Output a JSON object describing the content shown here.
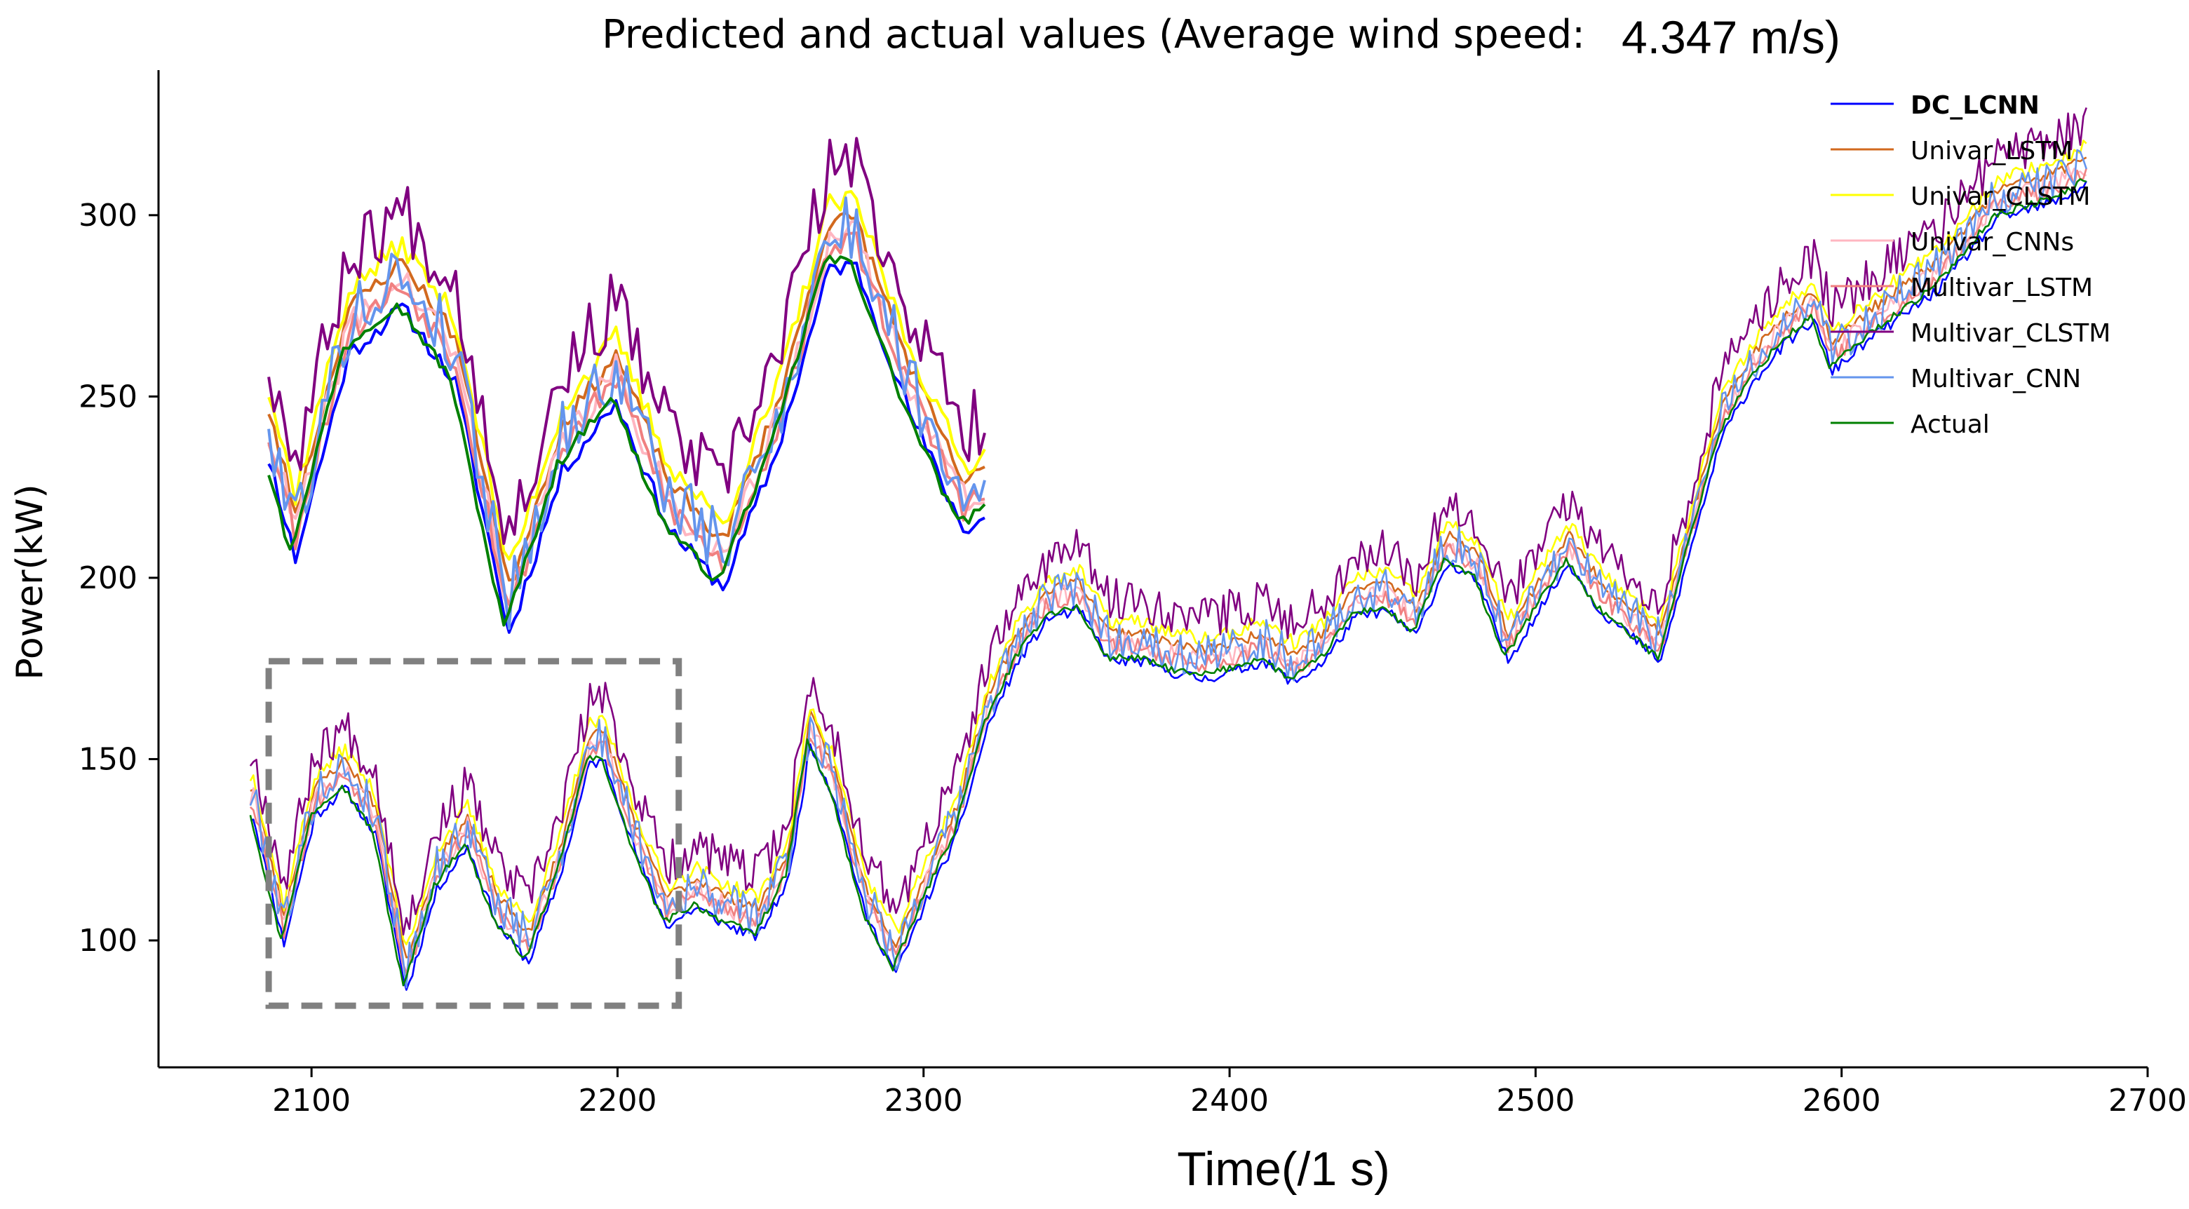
{
  "chart_data": {
    "type": "line",
    "title": "Predicted and actual values (Average wind speed:",
    "title_value": "4.347 m/s)",
    "xlabel": "Time(/1 s)",
    "ylabel": "Power(kW)",
    "xlim": [
      2050,
      2700
    ],
    "ylim": [
      65,
      340
    ],
    "xticks": [
      2100,
      2200,
      2300,
      2400,
      2500,
      2600,
      2700
    ],
    "yticks": [
      100,
      150,
      200,
      250,
      300
    ],
    "grid": false,
    "legend_position": "top-right",
    "zoom_box": {
      "x": [
        2086,
        2220
      ],
      "y": [
        82,
        177
      ]
    },
    "inset_x": [
      2086,
      2320
    ],
    "series": [
      {
        "name": "DC_LCNN",
        "color": "#0000ff",
        "bold": true,
        "offset": -1,
        "noise": 1.5,
        "seed": 11
      },
      {
        "name": "Univar_LSTM",
        "color": "#d2691e",
        "offset": 7,
        "noise": 1.5,
        "seed": 23
      },
      {
        "name": "Univar_CLSTM",
        "color": "#ffff00",
        "offset": 10,
        "noise": 2,
        "seed": 37
      },
      {
        "name": "Univar_CNNs",
        "color": "#ffb6c1",
        "offset": 4,
        "noise": 3,
        "seed": 41
      },
      {
        "name": "Multivar_LSTM",
        "color": "#f08080",
        "offset": 3,
        "noise": 2.5,
        "seed": 53
      },
      {
        "name": "Multivar_CLSTM",
        "color": "#800080",
        "offset": 16,
        "noise": 6,
        "seed": 67
      },
      {
        "name": "Multivar_CNN",
        "color": "#6495ed",
        "offset": 5,
        "noise": 6,
        "seed": 79
      },
      {
        "name": "Actual",
        "color": "#008000",
        "offset": 0,
        "noise": 1,
        "seed": 97
      }
    ],
    "actual_keypoints": {
      "x": [
        2080,
        2090,
        2100,
        2110,
        2120,
        2130,
        2140,
        2150,
        2160,
        2170,
        2180,
        2190,
        2195,
        2205,
        2215,
        2225,
        2235,
        2245,
        2255,
        2262,
        2270,
        2280,
        2290,
        2300,
        2310,
        2320,
        2330,
        2340,
        2350,
        2360,
        2370,
        2380,
        2390,
        2400,
        2410,
        2420,
        2430,
        2440,
        2450,
        2460,
        2470,
        2480,
        2490,
        2500,
        2510,
        2520,
        2530,
        2540,
        2550,
        2560,
        2570,
        2580,
        2590,
        2596,
        2610,
        2630,
        2650,
        2670,
        2680
      ],
      "values": [
        135,
        100,
        135,
        143,
        130,
        87,
        115,
        127,
        105,
        95,
        118,
        150,
        150,
        125,
        105,
        110,
        105,
        102,
        118,
        155,
        140,
        108,
        92,
        112,
        130,
        160,
        178,
        190,
        192,
        178,
        178,
        175,
        173,
        175,
        178,
        172,
        178,
        190,
        192,
        185,
        205,
        200,
        178,
        192,
        205,
        192,
        185,
        178,
        210,
        240,
        255,
        265,
        272,
        258,
        268,
        280,
        300,
        305,
        310
      ]
    }
  }
}
